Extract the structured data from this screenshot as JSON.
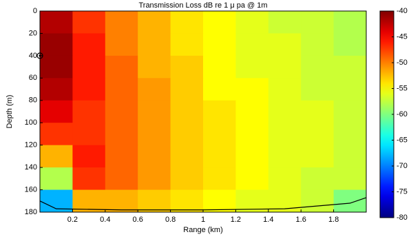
{
  "chart_data": {
    "type": "heatmap",
    "title": "Transmission Loss dB re 1 μ pa @ 1m",
    "x_label": "Range (km)",
    "y_label": "Depth (m)",
    "x": [
      0.1,
      0.3,
      0.5,
      0.7,
      0.9,
      1.1,
      1.3,
      1.5,
      1.7,
      1.9
    ],
    "y": [
      10,
      30,
      50,
      70,
      90,
      110,
      130,
      150,
      170
    ],
    "z": [
      [
        -42,
        -47,
        -50,
        -52,
        -54,
        -55,
        -56,
        -57,
        -57,
        -58
      ],
      [
        -41,
        -46,
        -50,
        -52,
        -54,
        -55,
        -56,
        -56,
        -57,
        -58
      ],
      [
        -41,
        -46,
        -49,
        -52,
        -53,
        -55,
        -56,
        -56,
        -57,
        -57
      ],
      [
        -42,
        -46,
        -49,
        -51,
        -53,
        -55,
        -55,
        -56,
        -57,
        -57
      ],
      [
        -44,
        -47,
        -49,
        -51,
        -53,
        -54,
        -55,
        -56,
        -56,
        -57
      ],
      [
        -47,
        -47,
        -49,
        -51,
        -53,
        -54,
        -55,
        -56,
        -56,
        -57
      ],
      [
        -52,
        -46,
        -49,
        -51,
        -53,
        -54,
        -55,
        -56,
        -56,
        -57
      ],
      [
        -58,
        -47,
        -49,
        -51,
        -53,
        -54,
        -55,
        -56,
        -57,
        -57
      ],
      [
        -68,
        -52,
        -52,
        -53,
        -54,
        -55,
        -56,
        -56,
        -57,
        -60
      ]
    ],
    "xlim": [
      0,
      2
    ],
    "ylim": [
      0,
      180
    ],
    "y_inverted": true,
    "xticks": [
      0.2,
      0.4,
      0.6,
      0.8,
      1,
      1.2,
      1.4,
      1.6,
      1.8
    ],
    "yticks": [
      0,
      20,
      40,
      60,
      80,
      100,
      120,
      140,
      160,
      180
    ],
    "colormap": "jet",
    "clim": [
      -80,
      -40
    ],
    "cticks": [
      -40,
      -45,
      -50,
      -55,
      -60,
      -65,
      -70,
      -75,
      -80
    ],
    "bathymetry": {
      "x": [
        0,
        0.1,
        0.5,
        1.0,
        1.5,
        1.9,
        2.0
      ],
      "depth": [
        170,
        177,
        178,
        178,
        177,
        172,
        167
      ]
    },
    "source": {
      "x": 0,
      "depth": 40
    }
  }
}
